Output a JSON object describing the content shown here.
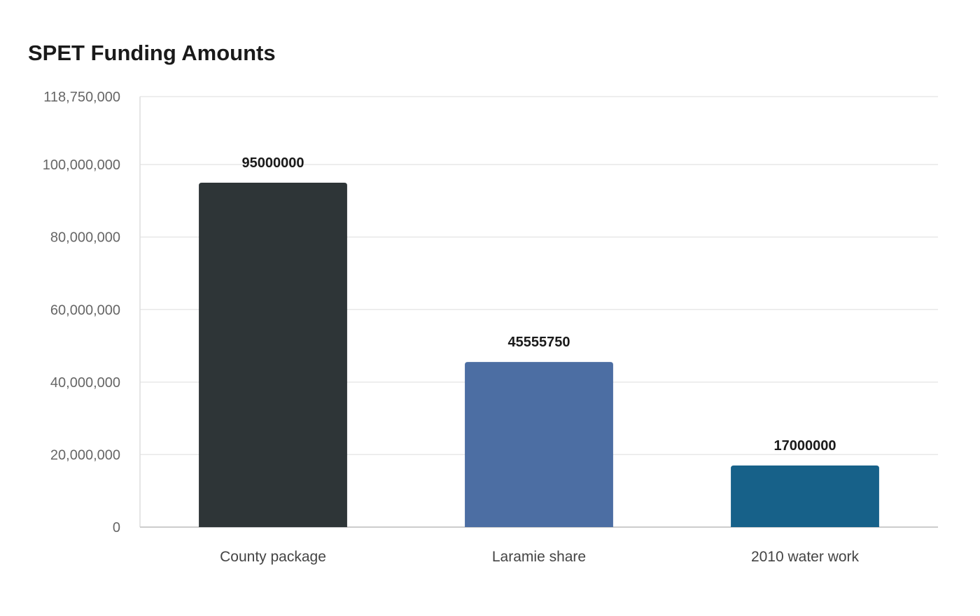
{
  "chart_data": {
    "type": "bar",
    "title": "SPET Funding Amounts",
    "xlabel": "",
    "ylabel": "",
    "categories": [
      "County package",
      "Laramie share",
      "2010 water work"
    ],
    "values": [
      95000000,
      45555750,
      17000000
    ],
    "value_labels": [
      "95000000",
      "45555750",
      "17000000"
    ],
    "bar_colors": [
      "#2e3537",
      "#4c6ea3",
      "#176189"
    ],
    "ylim": [
      0,
      118750000
    ],
    "yticks": [
      0,
      20000000,
      40000000,
      60000000,
      80000000,
      100000000,
      118750000
    ],
    "ytick_labels": [
      "0",
      "20,000,000",
      "40,000,000",
      "60,000,000",
      "80,000,000",
      "100,000,000",
      "118,750,000"
    ],
    "grid": true,
    "legend": "none"
  }
}
